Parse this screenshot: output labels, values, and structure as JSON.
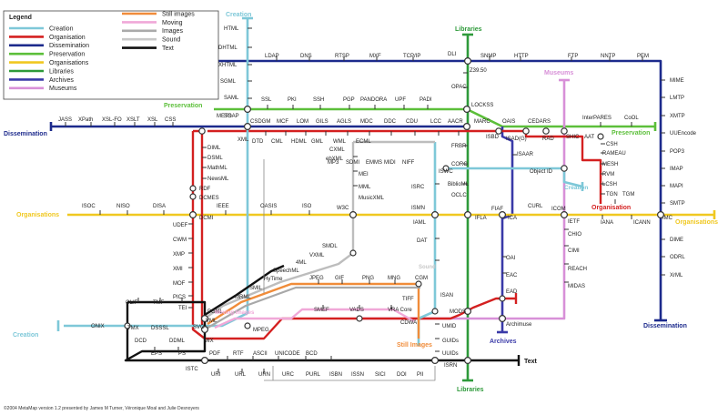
{
  "legend": {
    "title": "Legend",
    "items": [
      {
        "label": "Creation",
        "color": "#7ec8d8"
      },
      {
        "label": "Organisation",
        "color": "#d42020"
      },
      {
        "label": "Dissemination",
        "color": "#1c2a8c"
      },
      {
        "label": "Preservation",
        "color": "#5cbf3a"
      },
      {
        "label": "Organisations",
        "color": "#f0c820"
      },
      {
        "label": "Libraries",
        "color": "#2e9a3a"
      },
      {
        "label": "Archives",
        "color": "#3a3aa8"
      },
      {
        "label": "Museums",
        "color": "#d890d8"
      },
      {
        "label": "Still images",
        "color": "#f08c3a"
      },
      {
        "label": "Moving",
        "color": "#f0a8d8"
      },
      {
        "label": "Images",
        "color": "#aaaaaa"
      },
      {
        "label": "Sound",
        "color": "#c8c8c8"
      },
      {
        "label": "Text",
        "color": "#111111"
      }
    ]
  },
  "line_labels": [
    {
      "text": "Creation",
      "color": "#7ec8d8"
    },
    {
      "text": "Libraries",
      "color": "#2e9a3a"
    },
    {
      "text": "Museums",
      "color": "#d890d8"
    },
    {
      "text": "Preservation",
      "color": "#5cbf3a"
    },
    {
      "text": "Dissemination",
      "color": "#1c2a8c"
    },
    {
      "text": "Preservation",
      "color": "#5cbf3a"
    },
    {
      "text": "Creation",
      "color": "#7ec8d8"
    },
    {
      "text": "Organisation",
      "color": "#d42020"
    },
    {
      "text": "Organisations",
      "color": "#f0c820"
    },
    {
      "text": "Organisations",
      "color": "#f0c820"
    },
    {
      "text": "Sound",
      "color": "#c8c8c8"
    },
    {
      "text": "Moving Images",
      "color": "#f0a8d8"
    },
    {
      "text": "Still Images",
      "color": "#f08c3a"
    },
    {
      "text": "Archives",
      "color": "#3a3aa8"
    },
    {
      "text": "Dissemination",
      "color": "#1c2a8c"
    },
    {
      "text": "Text",
      "color": "#111111"
    },
    {
      "text": "Creation",
      "color": "#7ec8d8"
    },
    {
      "text": "Libraries",
      "color": "#2e9a3a"
    }
  ],
  "stations": [
    "HTML",
    "DHTML",
    "XHTML",
    "SGML",
    "SAML",
    "SOAP",
    "LDAP",
    "DNS",
    "RTSP",
    "MXF",
    "TCP/IP",
    "DLI",
    "SNMP",
    "HTTP",
    "FTP",
    "NNTP",
    "PEM",
    "Z39.50",
    "OPAC",
    "LOCKSS",
    "SSL",
    "PKI",
    "SSH",
    "PGP",
    "PANDORA",
    "UPF",
    "PADI",
    "JASS",
    "XPath",
    "XSL-FO",
    "XSLT",
    "XSL",
    "CSS",
    "METS",
    "XML",
    "CSDGM",
    "MCF",
    "LOM",
    "GILS",
    "AGLS",
    "MDC",
    "DDC",
    "CDU",
    "LCC",
    "AACR",
    "MARC",
    "OAIS",
    "CEDARS",
    "InterPARES",
    "CoOL",
    "MIME",
    "LMTP",
    "XMTP",
    "UUEncode",
    "POP3",
    "IMAP",
    "MAPI",
    "SMTP",
    "DIME",
    "ODRL",
    "XrML",
    "DTD",
    "CML",
    "HDML",
    "GML",
    "WML",
    "ECML",
    "DIML",
    "DSML",
    "MathML",
    "NewsML",
    "CXML",
    "ebXML",
    "FRBR",
    "ISBD",
    "ISAD(G)",
    "RAD",
    "SHIC",
    "AAT",
    "ISAAR",
    "CSH",
    "RAMEAU",
    "MESH",
    "RVM",
    "LCSH",
    "TGN",
    "TGM",
    "MP3",
    "SDMI",
    "EMMS",
    "MIDI",
    "NIFF",
    "MEI",
    "MML",
    "MusicXML",
    "CORC",
    "ISWC",
    "BiblioML",
    "OCLC",
    "Object ID",
    "RDF",
    "DCMES",
    "DCMI",
    "ISOC",
    "NISO",
    "DISA",
    "IEEE",
    "OASIS",
    "ISO",
    "W3C",
    "ISRC",
    "ISMN",
    "IFLA",
    "FIAF",
    "ICA",
    "CURL",
    "ICOM",
    "IETF",
    "IANA",
    "ICANN",
    "IMC",
    "IAML",
    "CHIO",
    "CIMI",
    "REACH",
    "MIDAS",
    "UDEF",
    "CWM",
    "XMP",
    "XMI",
    "MOF",
    "PICS",
    "TEI",
    "DAT",
    "SMDL",
    "VXML",
    "4ML",
    "SpeechML",
    "HyTime",
    "SMIL",
    "MRML",
    "JPEG",
    "GIF",
    "PNG",
    "MNG",
    "CGM",
    "OAI",
    "EAC",
    "EAD",
    "ONIX",
    "OLIF",
    "TMF",
    "TMX",
    "DSSSL",
    "PGML",
    "VML",
    "SVG",
    "SMEF",
    "VADS",
    "VRA Core",
    "TIFF",
    "ISAN",
    "MODS",
    "Archimuse",
    "DCD",
    "DDML",
    "MIX",
    "MPEG",
    "CDWA",
    "UMID",
    "GUIDs",
    "UUIDs",
    "EPS",
    "PS",
    "PDF",
    "RTF",
    "ASCII",
    "UNICODE",
    "BCD",
    "ISTC",
    "URI",
    "URL",
    "URN",
    "URC",
    "PURL",
    "ISBN",
    "ISSN",
    "SICI",
    "DOI",
    "PII",
    "ISRN"
  ],
  "credit": "©2004 MetaMap version 1.2 presented by James M Turner, Véronique Moal and Julie Desnoyers"
}
